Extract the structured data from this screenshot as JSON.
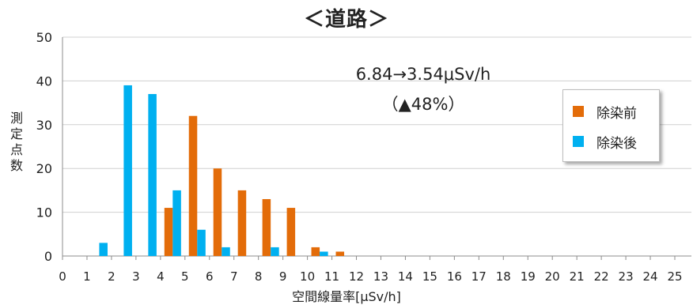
{
  "chart_data": {
    "type": "bar",
    "title": "＜道路＞",
    "xlabel": "空間線量率[μSv/h]",
    "ylabel": "測定点数",
    "ylim": [
      0,
      50
    ],
    "yticks": [
      0,
      10,
      20,
      30,
      40,
      50
    ],
    "xticks": [
      0,
      1,
      2,
      3,
      4,
      5,
      6,
      7,
      8,
      9,
      10,
      11,
      12,
      13,
      14,
      15,
      16,
      17,
      18,
      19,
      20,
      21,
      22,
      23,
      24,
      25
    ],
    "categories": [
      1,
      2,
      3,
      4,
      5,
      6,
      7,
      8,
      9,
      10,
      11,
      12,
      13,
      14,
      15,
      16,
      17,
      18,
      19,
      20,
      21,
      22,
      23,
      24,
      25
    ],
    "series": [
      {
        "name": "除染前",
        "color": "#E36C09",
        "values": [
          0,
          0,
          0,
          0,
          11,
          32,
          20,
          15,
          13,
          11,
          2,
          1,
          0,
          0,
          0,
          0,
          0,
          0,
          0,
          0,
          0,
          0,
          0,
          0,
          0
        ]
      },
      {
        "name": "除染後",
        "color": "#00B0F0",
        "values": [
          0,
          3,
          39,
          37,
          15,
          6,
          2,
          0,
          2,
          0,
          1,
          0,
          0,
          0,
          0,
          0,
          0,
          0,
          0,
          0,
          0,
          0,
          0,
          0,
          0
        ]
      }
    ],
    "annotation_line1": "6.84→3.54μSv/h",
    "annotation_line2": "（▲48%）",
    "grid": true,
    "legend_position": "right"
  }
}
